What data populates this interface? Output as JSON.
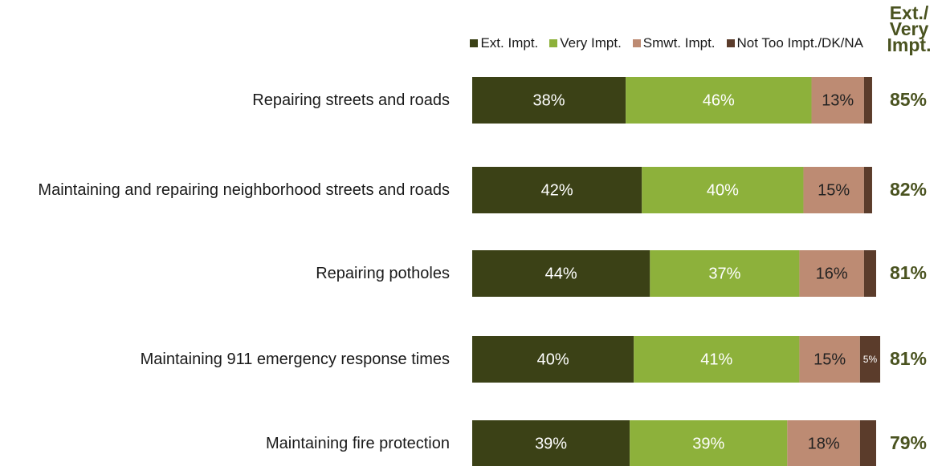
{
  "chart_data": {
    "type": "stacked-bar-horizontal",
    "categories": [
      "Repairing streets and roads",
      "Maintaining and repairing neighborhood streets and roads",
      "Repairing potholes",
      "Maintaining 911 emergency response times",
      "Maintaining fire protection"
    ],
    "series": [
      {
        "name": "Ext. Impt.",
        "color": "#3b4116",
        "values": [
          38,
          42,
          44,
          40,
          39
        ],
        "value_labels": [
          "38%",
          "42%",
          "44%",
          "40%",
          "39%"
        ]
      },
      {
        "name": "Very Impt.",
        "color": "#8db13b",
        "values": [
          46,
          40,
          37,
          41,
          39
        ],
        "value_labels": [
          "46%",
          "40%",
          "37%",
          "41%",
          "39%"
        ]
      },
      {
        "name": "Smwt. Impt.",
        "color": "#bd8b73",
        "values": [
          13,
          15,
          16,
          15,
          18
        ],
        "value_labels": [
          "13%",
          "15%",
          "16%",
          "15%",
          "18%"
        ]
      },
      {
        "name": "Not Too Impt./DK/NA",
        "color": "#5b3c2b",
        "values": [
          2,
          2,
          3,
          5,
          4
        ],
        "value_labels": [
          null,
          null,
          null,
          "5%",
          null
        ]
      }
    ],
    "totals": {
      "title": "Ext./ Very Impt.",
      "values": [
        85,
        82,
        81,
        81,
        79
      ],
      "value_labels": [
        "85%",
        "82%",
        "81%",
        "81%",
        "79%"
      ]
    }
  }
}
